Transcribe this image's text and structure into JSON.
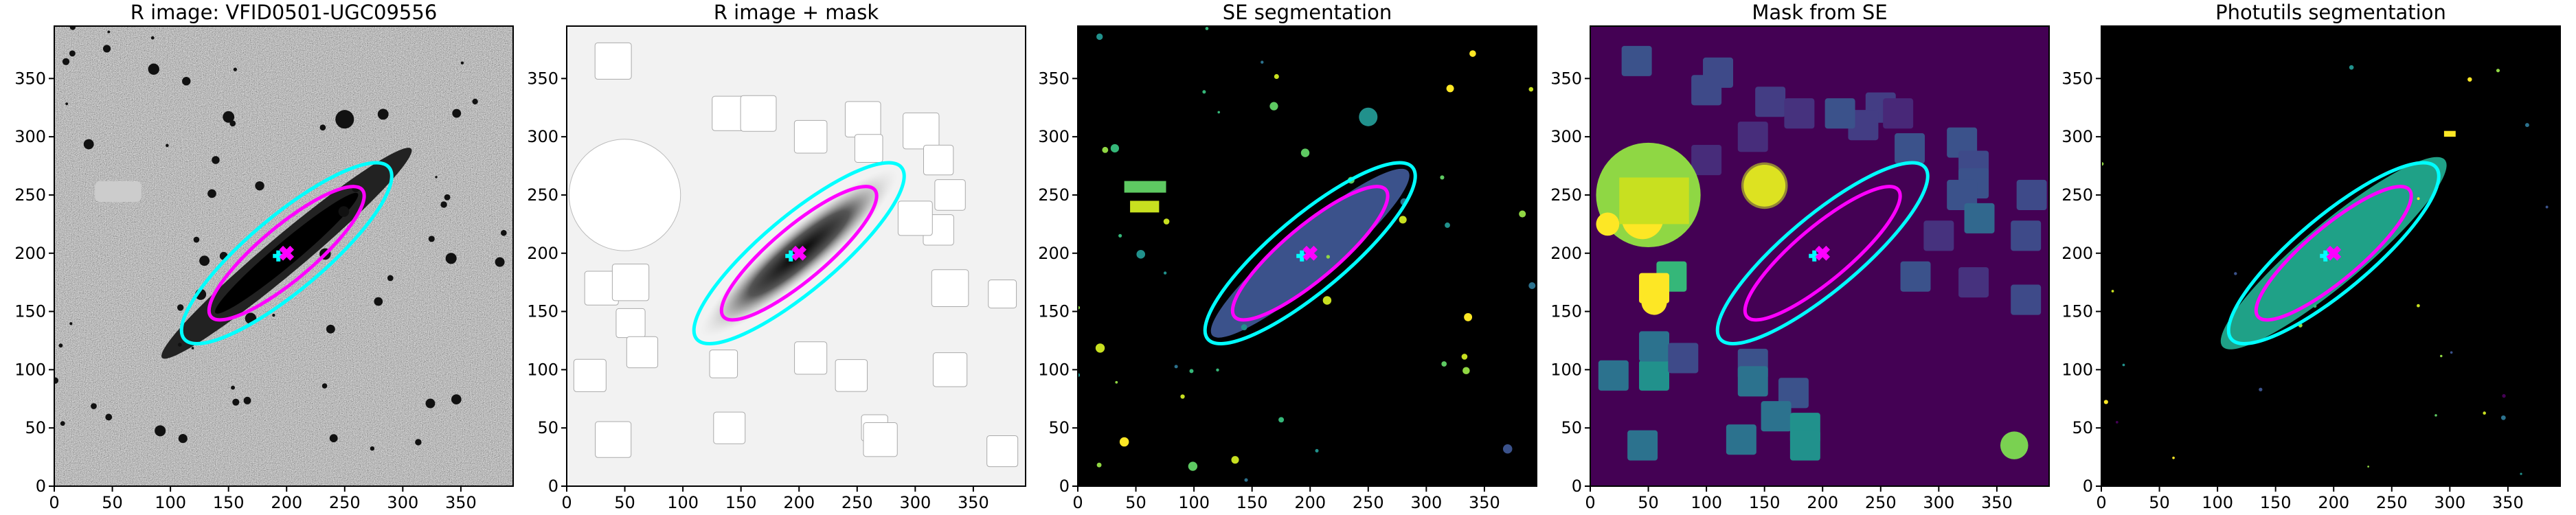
{
  "chart_data": [
    {
      "type": "image",
      "title": "R image: VFID0501-UGC09556",
      "style": "raw",
      "xlim": [
        0,
        395
      ],
      "ylim": [
        0,
        395
      ],
      "xticks": [
        0,
        50,
        100,
        150,
        200,
        250,
        300,
        350
      ],
      "yticks": [
        0,
        50,
        100,
        150,
        200,
        250,
        300,
        350
      ]
    },
    {
      "type": "image",
      "title": "R image + mask",
      "style": "masked",
      "xlim": [
        0,
        395
      ],
      "ylim": [
        0,
        395
      ],
      "xticks": [
        0,
        50,
        100,
        150,
        200,
        250,
        300,
        350
      ],
      "yticks": [
        0,
        50,
        100,
        150,
        200,
        250,
        300,
        350
      ]
    },
    {
      "type": "image",
      "title": "SE segmentation",
      "style": "seg",
      "xlim": [
        0,
        395
      ],
      "ylim": [
        0,
        395
      ],
      "xticks": [
        0,
        50,
        100,
        150,
        200,
        250,
        300,
        350
      ],
      "yticks": [
        0,
        50,
        100,
        150,
        200,
        250,
        300,
        350
      ]
    },
    {
      "type": "image",
      "title": "Mask from SE",
      "style": "mask",
      "xlim": [
        0,
        395
      ],
      "ylim": [
        0,
        395
      ],
      "xticks": [
        0,
        50,
        100,
        150,
        200,
        250,
        300,
        350
      ],
      "yticks": [
        0,
        50,
        100,
        150,
        200,
        250,
        300,
        350
      ]
    },
    {
      "type": "image",
      "title": "Photutils segmentation",
      "style": "phot",
      "xlim": [
        0,
        395
      ],
      "ylim": [
        0,
        395
      ],
      "xticks": [
        0,
        50,
        100,
        150,
        200,
        250,
        300,
        350
      ],
      "yticks": [
        0,
        50,
        100,
        150,
        200,
        250,
        300,
        350
      ]
    }
  ]
}
